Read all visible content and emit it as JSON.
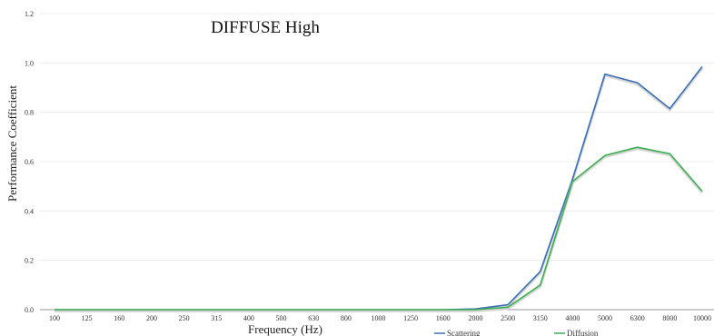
{
  "chart_data": {
    "type": "line",
    "title": "DIFFUSE High",
    "xlabel": "Frequency (Hz)",
    "ylabel": "Performance Coefficient",
    "categories": [
      "100",
      "125",
      "160",
      "200",
      "250",
      "315",
      "400",
      "500",
      "630",
      "800",
      "1000",
      "1250",
      "1600",
      "2000",
      "2500",
      "3150",
      "4000",
      "5000",
      "6300",
      "8000",
      "10000"
    ],
    "ylim": [
      0,
      1.2
    ],
    "yticks": [
      "0.0",
      "0.2",
      "0.4",
      "0.6",
      "0.8",
      "1.0",
      "1.2"
    ],
    "grid": true,
    "legend_position": "bottom",
    "series": [
      {
        "name": "Scattering",
        "color": "#3a6fb7",
        "values": [
          0,
          0,
          0,
          0,
          0,
          0,
          0,
          0,
          0,
          0,
          0,
          0,
          0,
          0.003,
          0.02,
          0.155,
          0.53,
          0.955,
          0.92,
          0.815,
          0.985
        ]
      },
      {
        "name": "Diffusion",
        "color": "#3fae52",
        "values": [
          0,
          0,
          0,
          0,
          0,
          0,
          0,
          0,
          0,
          0,
          0,
          0,
          0,
          0,
          0.01,
          0.1,
          0.52,
          0.625,
          0.658,
          0.632,
          0.48
        ]
      }
    ]
  }
}
